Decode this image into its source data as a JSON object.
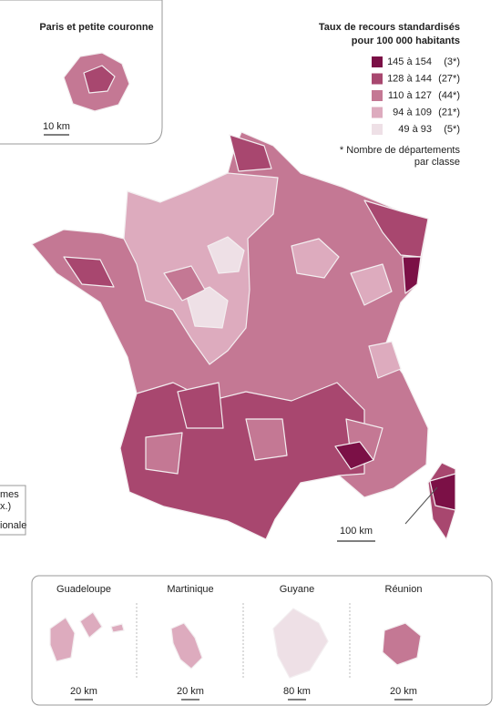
{
  "inset_paris": {
    "title": "Paris et petite couronne",
    "scale": "10 km"
  },
  "legend": {
    "title_lines": [
      "Taux de recours standardisés",
      "pour 100 000 habitants"
    ],
    "classes": [
      {
        "range": "145 à 154",
        "count": "(3*)",
        "color": "#7b1046"
      },
      {
        "range": "128 à 144",
        "count": "(27*)",
        "color": "#a8476f"
      },
      {
        "range": "110 à 127",
        "count": "(44*)",
        "color": "#c47894"
      },
      {
        "range": "94 à 109",
        "count": "(21*)",
        "color": "#ddabbe"
      },
      {
        "range": "49 à 93",
        "count": "(5*)",
        "color": "#eee0e6"
      }
    ],
    "note_lines": [
      "* Nombre de départements",
      "par classe"
    ]
  },
  "main_scale": "100 km",
  "side_text": [
    "mes",
    "x.)",
    "ionale"
  ],
  "overseas": [
    {
      "name": "Guadeloupe",
      "scale": "20 km"
    },
    {
      "name": "Martinique",
      "scale": "20 km"
    },
    {
      "name": "Guyane",
      "scale": "80 km"
    },
    {
      "name": "Réunion",
      "scale": "20 km"
    }
  ]
}
